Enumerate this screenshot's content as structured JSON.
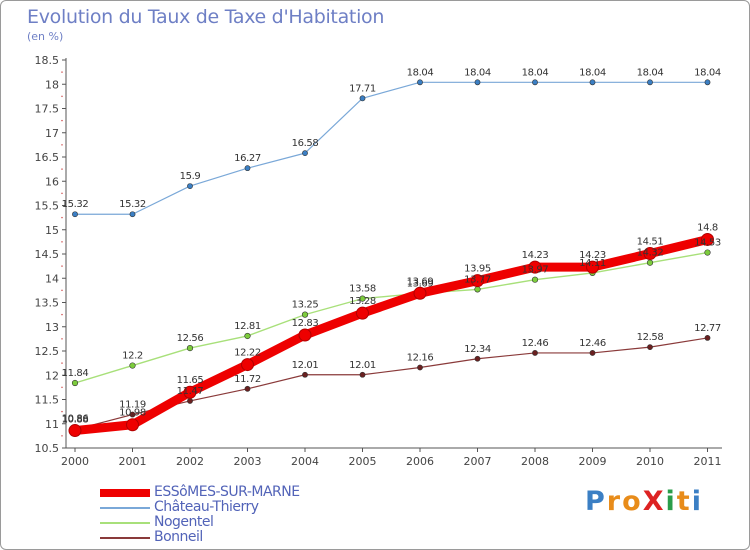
{
  "title": "Evolution du Taux de Taxe d'Habitation",
  "subtitle": "(en %)",
  "logo_text": "ProXiti",
  "chart_data": {
    "type": "line",
    "title": "Evolution du Taux de Taxe d'Habitation",
    "ylabel": "(en %)",
    "xlabel": "",
    "categories": [
      "2000",
      "2001",
      "2002",
      "2003",
      "2004",
      "2005",
      "2006",
      "2007",
      "2008",
      "2009",
      "2010",
      "2011"
    ],
    "ylim": [
      10.5,
      18.5
    ],
    "yticks": [
      "10.5",
      "11",
      "11.5",
      "12",
      "12.5",
      "13",
      "13.5",
      "14",
      "14.5",
      "15",
      "15.5",
      "16",
      "16.5",
      "17",
      "17.5",
      "18",
      "18.5"
    ],
    "grid": false,
    "series": [
      {
        "name": "ESSôMES-SUR-MARNE",
        "color": "#ee0000",
        "marker_color": "#ee0000",
        "values": [
          10.86,
          10.98,
          11.65,
          12.22,
          12.83,
          13.28,
          13.69,
          13.95,
          14.23,
          14.23,
          14.51,
          14.8
        ],
        "labels": [
          "10.86",
          "10.98",
          "11.65",
          "12.22",
          "12.83",
          "13.28",
          "13.69",
          "13.95",
          "14.23",
          "14.23",
          "14.51",
          "14.8"
        ]
      },
      {
        "name": "Château-Thierry",
        "color": "#7aa8d8",
        "marker_color": "#3b7fc4",
        "values": [
          15.32,
          15.32,
          15.9,
          16.27,
          16.58,
          17.71,
          18.04,
          18.04,
          18.04,
          18.04,
          18.04,
          18.04
        ],
        "labels": [
          "15.32",
          "15.32",
          "15.9",
          "16.27",
          "16.58",
          "17.71",
          "18.04",
          "18.04",
          "18.04",
          "18.04",
          "18.04",
          "18.04"
        ]
      },
      {
        "name": "Nogentel",
        "color": "#a8e07a",
        "marker_color": "#7ccc3c",
        "values": [
          11.84,
          12.2,
          12.56,
          12.81,
          13.25,
          13.58,
          13.69,
          13.77,
          13.97,
          14.11,
          14.32,
          14.53
        ],
        "labels": [
          "11.84",
          "12.2",
          "12.56",
          "12.81",
          "13.25",
          "13.58",
          "13.69",
          "13.77",
          "13.97",
          "14.11",
          "14.32",
          "14.53"
        ]
      },
      {
        "name": "Bonneil",
        "color": "#8a3a3a",
        "marker_color": "#6a2020",
        "values": [
          10.88,
          11.19,
          11.47,
          11.72,
          12.01,
          12.01,
          12.16,
          12.34,
          12.46,
          12.46,
          12.58,
          12.77
        ],
        "labels": [
          "10.88",
          "11.19",
          "11.47",
          "11.72",
          "12.01",
          "12.01",
          "12.16",
          "12.34",
          "12.46",
          "12.46",
          "12.58",
          "12.77"
        ]
      }
    ],
    "legend_position": "bottom-left"
  }
}
